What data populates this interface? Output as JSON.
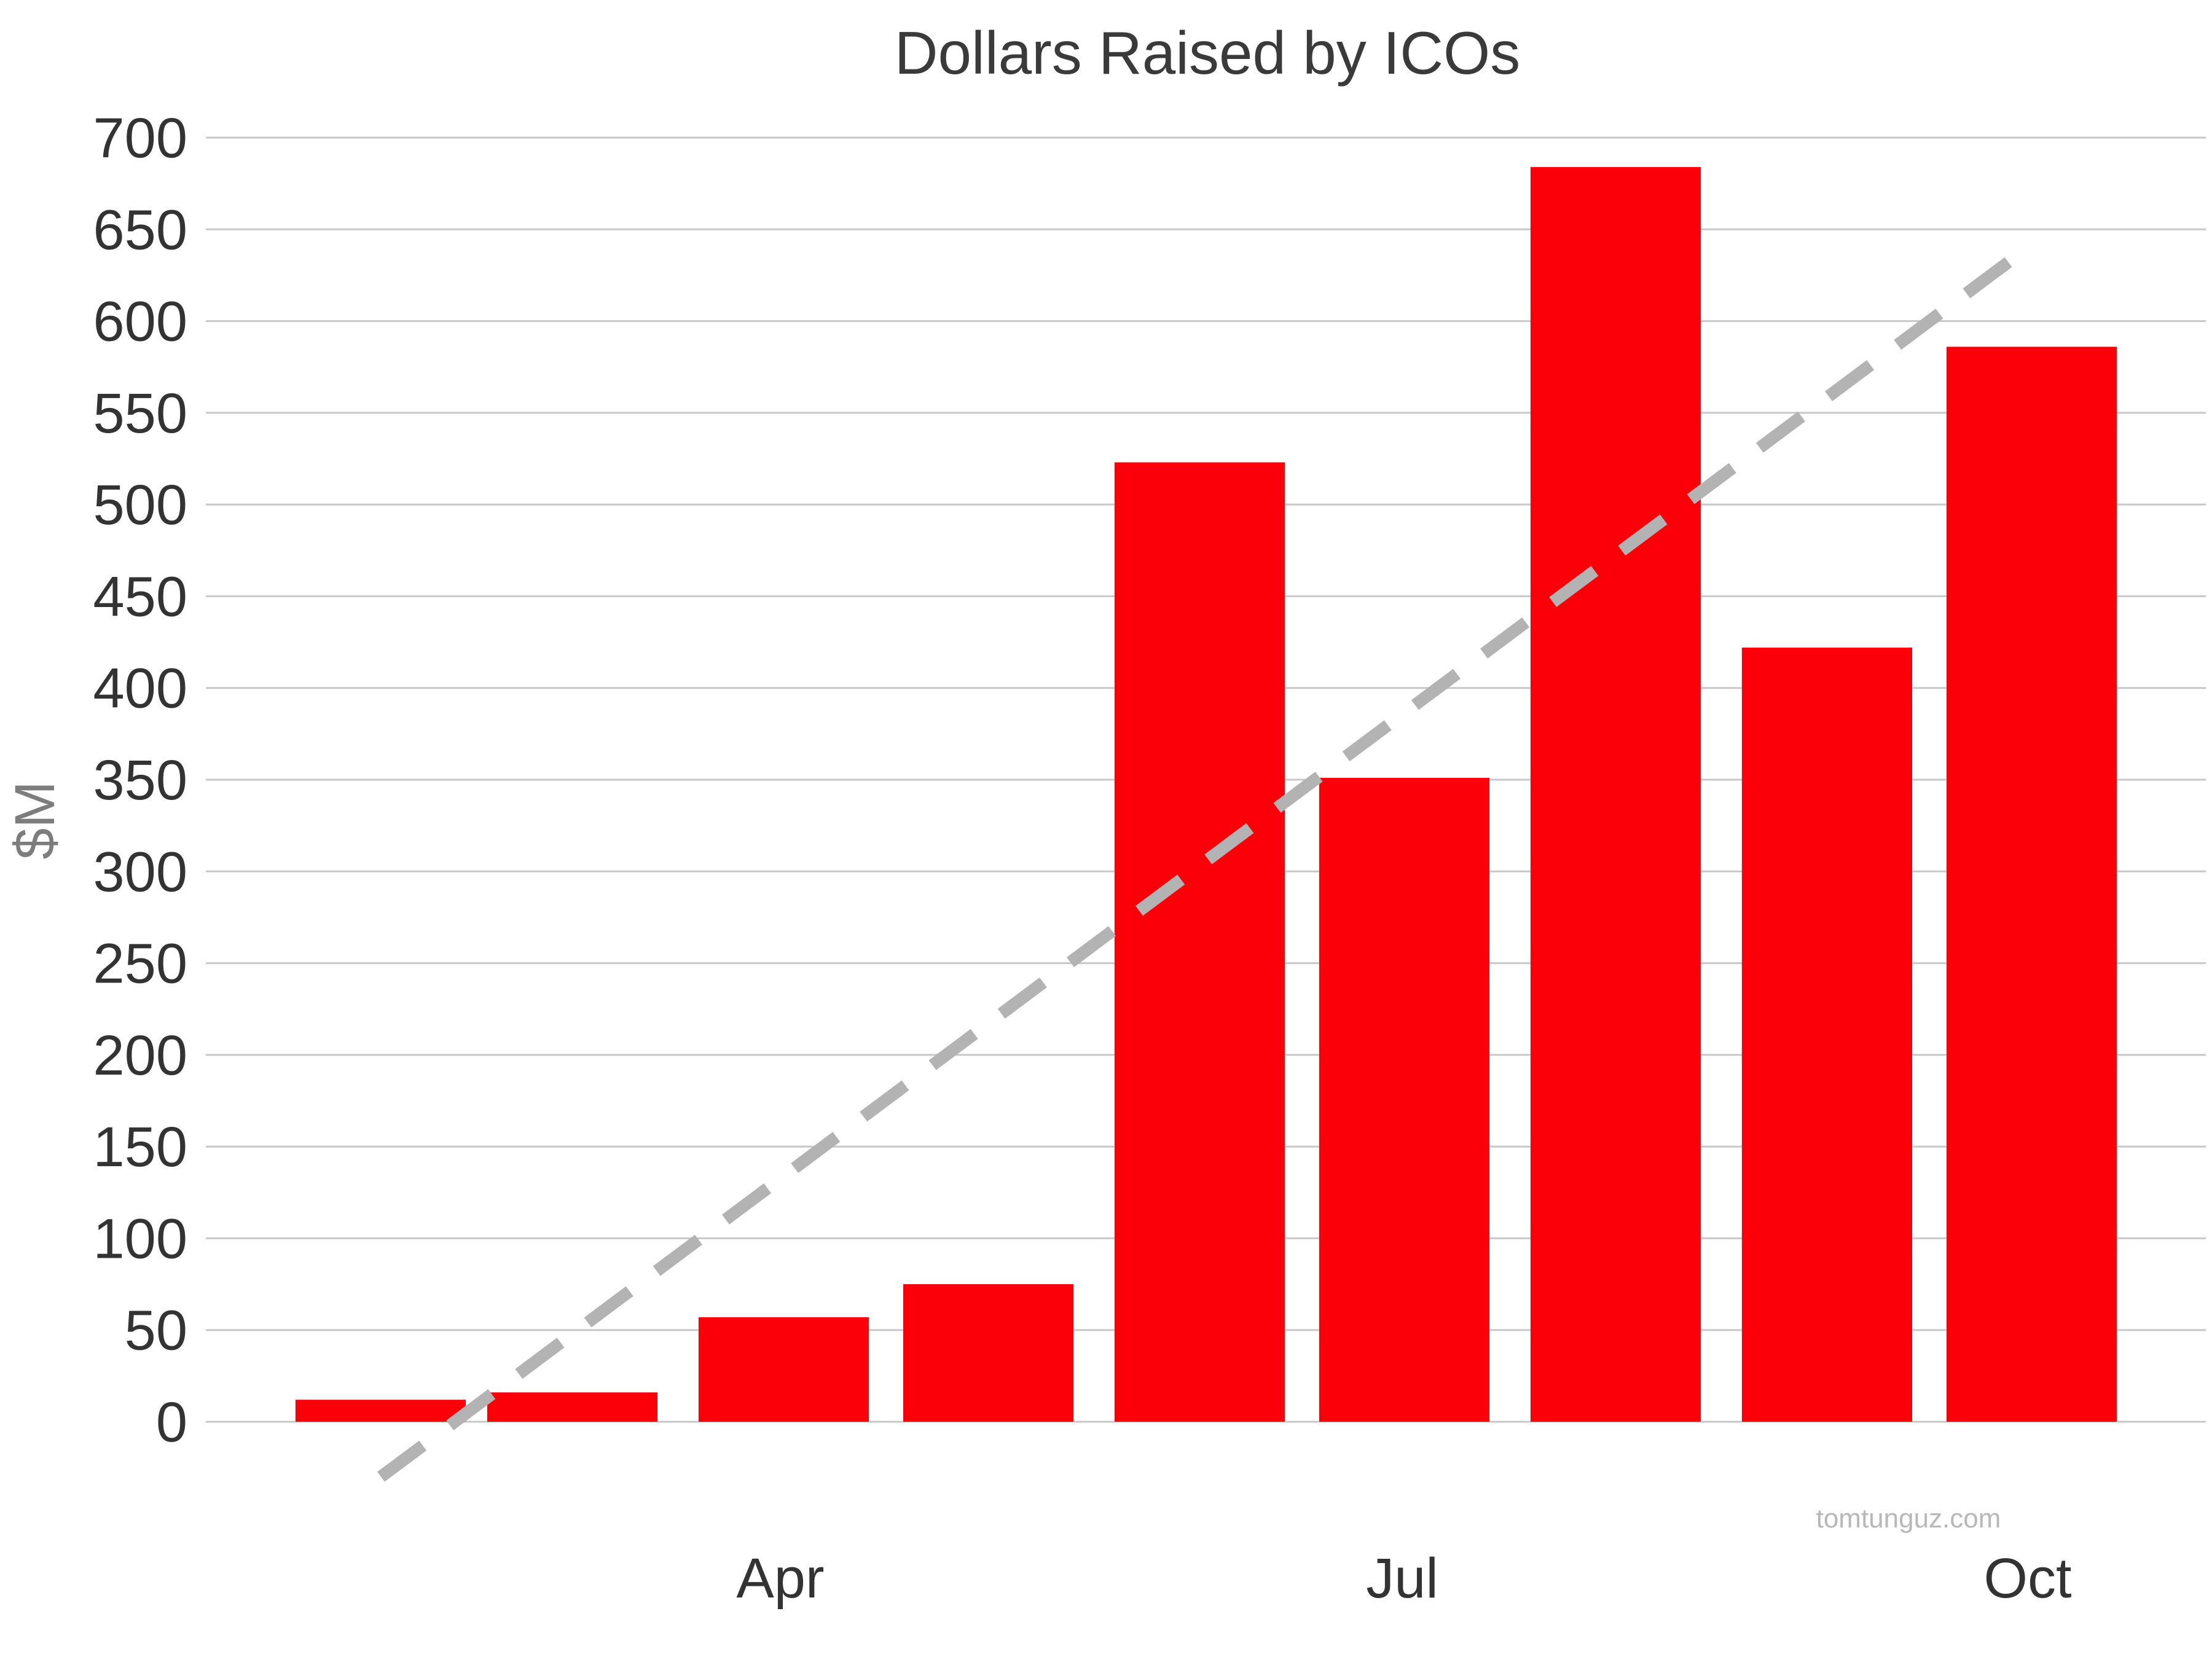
{
  "chart_data": {
    "type": "bar",
    "title": "Dollars Raised by ICOs",
    "xlabel": "",
    "ylabel": "$M",
    "ylim": [
      0,
      700
    ],
    "y_ticks": [
      0,
      50,
      100,
      150,
      200,
      250,
      300,
      350,
      400,
      450,
      500,
      550,
      600,
      650,
      700
    ],
    "x_tick_labels": [
      "Apr",
      "Jul",
      "Oct"
    ],
    "categories": [
      "",
      "",
      "",
      "",
      "",
      "",
      "",
      "",
      ""
    ],
    "values": [
      12,
      16,
      57,
      75,
      523,
      351,
      684,
      422,
      586
    ],
    "bar_color": "#fc0009",
    "grid": true,
    "grid_color": "#c8c8c8",
    "trendline": {
      "style": "dashed",
      "color": "#b3b3b3",
      "start_value": -30,
      "end_value": 640
    },
    "credit": "tomtunguz.com"
  }
}
